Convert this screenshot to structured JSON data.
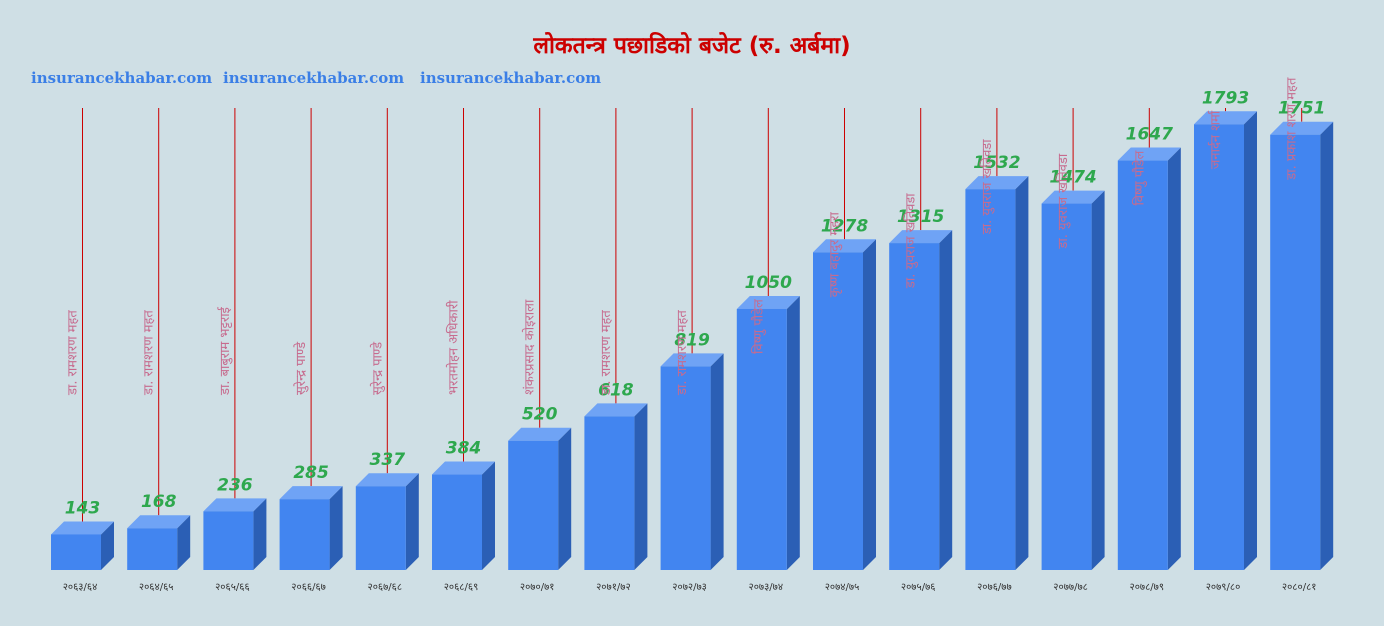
{
  "header": {
    "title": "लोकतन्त्र पछाडिको बजेट (रु. अर्बमा)",
    "watermarks": [
      "insurancekhabar.com",
      "insurancekhabar.com",
      "insurancekhabar.com"
    ]
  },
  "colors": {
    "title": "#cc0000",
    "bar_front": "#4285f0",
    "bar_top": "#6fa3f5",
    "bar_side": "#2b5fb5",
    "value_label": "#2ea84e",
    "leader_line": "#cc0000",
    "name_label": "#c76b8e",
    "watermark": "#3b7fe6",
    "background": "#cfdfe5"
  },
  "chart_data": {
    "type": "bar",
    "title": "लोकतन्त्र पछाडिको बजेट (रु. अर्बमा)",
    "xlabel": "",
    "ylabel": "",
    "categories": [
      "२०६३/६४",
      "२०६४/६५",
      "२०६५/६६",
      "२०६६/६७",
      "२०६७/६८",
      "२०६८/६९",
      "२०७०/७१",
      "२०७१/७२",
      "२०७२/७३",
      "२०७३/७४",
      "२०७४/७५",
      "२०७५/७६",
      "२०७६/७७",
      "२०७७/७८",
      "२०७८/७९",
      "२०७९/८०",
      "२०८०/८१"
    ],
    "values": [
      143,
      168,
      236,
      285,
      337,
      384,
      520,
      618,
      819,
      1050,
      1278,
      1315,
      1532,
      1474,
      1647,
      1793,
      1751
    ],
    "annotations": [
      "डा. रामशरण महत",
      "डा. रामशरण महत",
      "डा. बाबुराम भट्टराई",
      "सुरेन्द्र पाण्डे",
      "सुरेन्द्र पाण्डे",
      "भरतमोहन अधिकारी",
      "शंकरप्रसाद कोइराला",
      "डा. रामशरण महत",
      "डा. रामशरण महत",
      "विष्णु पौडेल",
      "कृष्ण बहादुर महरा",
      "डा. युवराज खतिवडा",
      "डा. युवराज खतिवडा",
      "डा. युवराज खतिवडा",
      "विष्णु पौडेल",
      "जनार्दन शर्मा",
      "डा. प्रकाश शरण महत"
    ],
    "ylim": [
      0,
      1900
    ],
    "grid": false,
    "legend": "none"
  }
}
